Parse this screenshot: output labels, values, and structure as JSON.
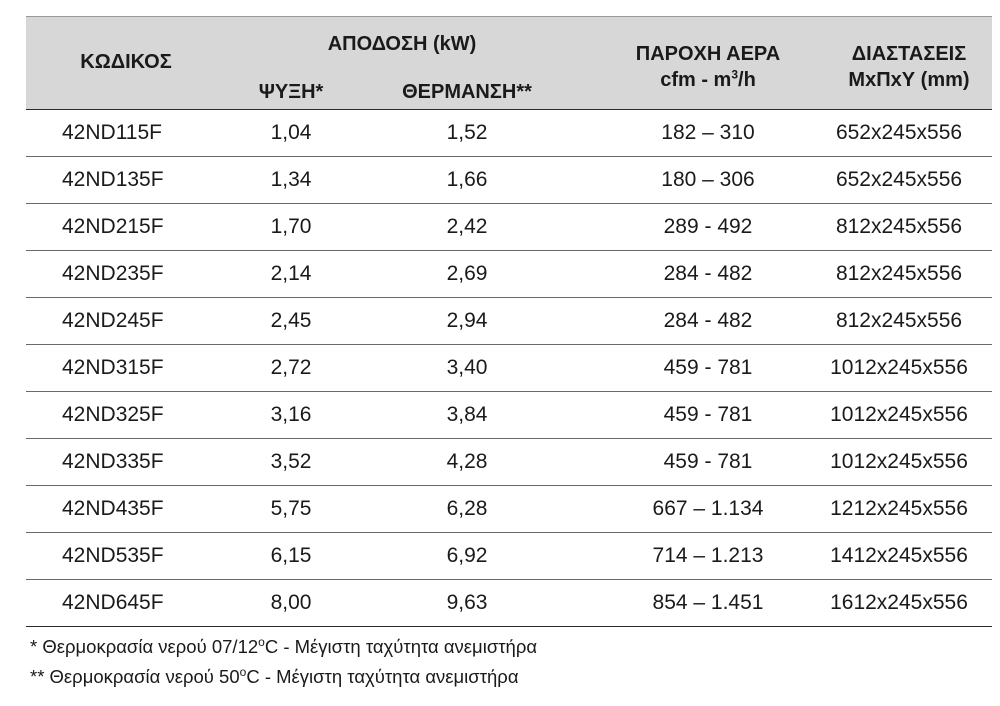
{
  "header": {
    "code": "ΚΩΔΙΚΟΣ",
    "performance": "ΑΠΟΔΟΣΗ (kW)",
    "cooling": "ΨΥΞΗ*",
    "heating": "ΘΕΡΜΑΝΣΗ**",
    "airflow_title": "ΠΑΡΟΧΗ ΑΕΡΑ",
    "airflow_unit_a": "cfm - m",
    "airflow_unit_sup": "3",
    "airflow_unit_b": "/h",
    "dimensions_title": "ΔΙΑΣΤΑΣΕΙΣ",
    "dimensions_unit": "ΜxΠxΥ (mm)"
  },
  "rows": [
    {
      "code": "42ND115F",
      "cooling": "1,04",
      "heating": "1,52",
      "airflow": "182 – 310",
      "dimensions": "652x245x556"
    },
    {
      "code": "42ND135F",
      "cooling": "1,34",
      "heating": "1,66",
      "airflow": "180 – 306",
      "dimensions": "652x245x556"
    },
    {
      "code": "42ND215F",
      "cooling": "1,70",
      "heating": "2,42",
      "airflow": "289 - 492",
      "dimensions": "812x245x556"
    },
    {
      "code": "42ND235F",
      "cooling": "2,14",
      "heating": "2,69",
      "airflow": "284 - 482",
      "dimensions": "812x245x556"
    },
    {
      "code": "42ND245F",
      "cooling": "2,45",
      "heating": "2,94",
      "airflow": "284 - 482",
      "dimensions": "812x245x556"
    },
    {
      "code": "42ND315F",
      "cooling": "2,72",
      "heating": "3,40",
      "airflow": "459 - 781",
      "dimensions": "1012x245x556"
    },
    {
      "code": "42ND325F",
      "cooling": "3,16",
      "heating": "3,84",
      "airflow": "459 - 781",
      "dimensions": "1012x245x556"
    },
    {
      "code": "42ND335F",
      "cooling": "3,52",
      "heating": "4,28",
      "airflow": "459 - 781",
      "dimensions": "1012x245x556"
    },
    {
      "code": "42ND435F",
      "cooling": "5,75",
      "heating": "6,28",
      "airflow": "667 – 1.134",
      "dimensions": "1212x245x556"
    },
    {
      "code": "42ND535F",
      "cooling": "6,15",
      "heating": "6,92",
      "airflow": "714 – 1.213",
      "dimensions": "1412x245x556"
    },
    {
      "code": "42ND645F",
      "cooling": "8,00",
      "heating": "9,63",
      "airflow": "854 – 1.451",
      "dimensions": "1612x245x556"
    }
  ],
  "notes": {
    "note1_a": "* Θερμοκρασία νερού 07/12",
    "note1_sup": "o",
    "note1_b": "C - Μέγιστη ταχύτητα ανεμιστήρα",
    "note2_a": "** Θερμοκρασία νερού 50",
    "note2_sup": "o",
    "note2_b": "C - Μέγιστη ταχύτητα ανεμιστήρα"
  }
}
